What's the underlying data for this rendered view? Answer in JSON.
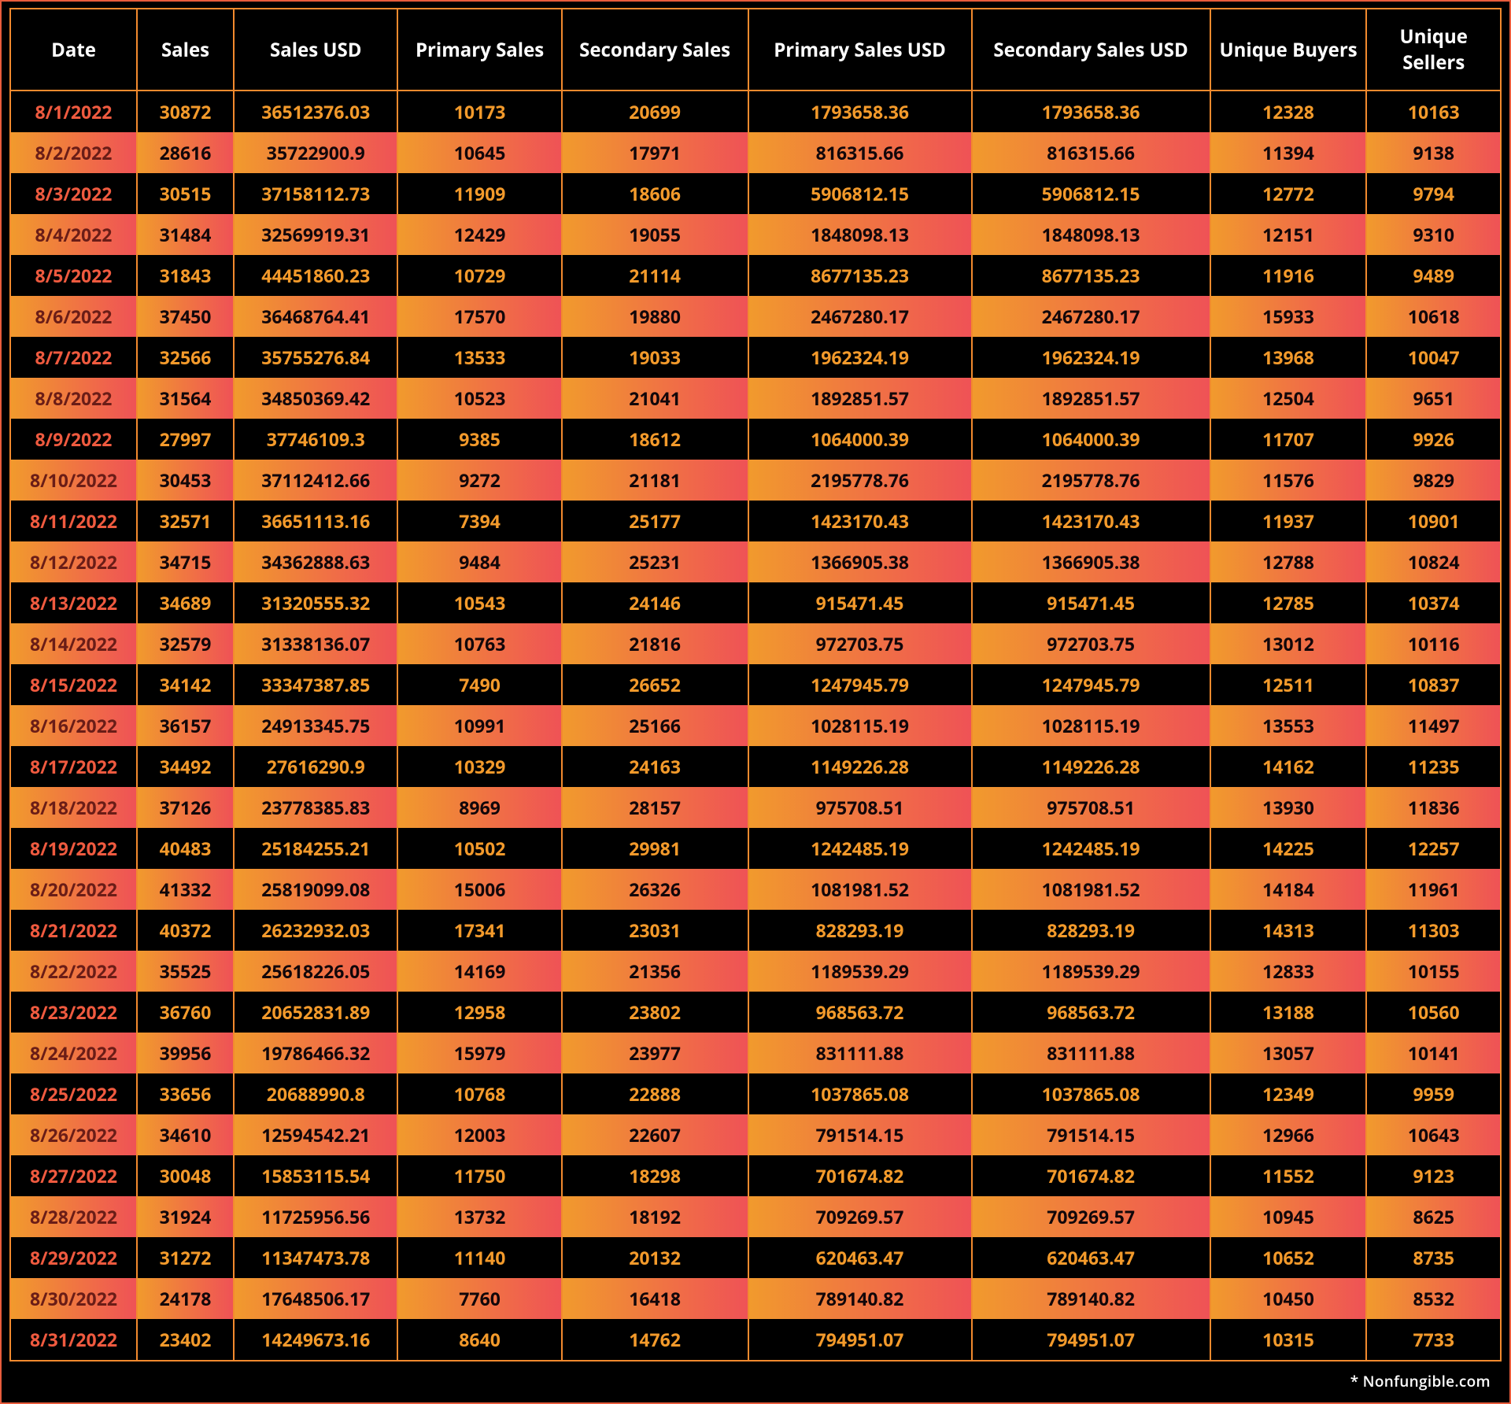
{
  "table": {
    "type": "table",
    "background_color": "#000000",
    "border_color": "#f28a2e",
    "header_bg": "#000000",
    "header_text_color": "#ffffff",
    "header_fontsize": 24,
    "header_fontweight": 700,
    "cell_fontsize": 23,
    "cell_fontweight": 700,
    "odd_row": {
      "bg": "#000000",
      "text_color": "#f39a2b",
      "date_color": "#ef5a3f"
    },
    "even_row": {
      "gradient_start": "#f19a2d",
      "gradient_end": "#ef5256",
      "text_color": "#12070a",
      "date_color": "#6a1d17"
    },
    "column_widths_pct": [
      8.5,
      6.5,
      11,
      11,
      12.5,
      15,
      16,
      10.5,
      11
    ],
    "columns": [
      "Date",
      "Sales",
      "Sales USD",
      "Primary Sales",
      "Secondary Sales",
      "Primary Sales USD",
      "Secondary Sales USD",
      "Unique Buyers",
      "Unique Sellers"
    ],
    "rows": [
      [
        "8/1/2022",
        "30872",
        "36512376.03",
        "10173",
        "20699",
        "1793658.36",
        "1793658.36",
        "12328",
        "10163"
      ],
      [
        "8/2/2022",
        "28616",
        "35722900.9",
        "10645",
        "17971",
        "816315.66",
        "816315.66",
        "11394",
        "9138"
      ],
      [
        "8/3/2022",
        "30515",
        "37158112.73",
        "11909",
        "18606",
        "5906812.15",
        "5906812.15",
        "12772",
        "9794"
      ],
      [
        "8/4/2022",
        "31484",
        "32569919.31",
        "12429",
        "19055",
        "1848098.13",
        "1848098.13",
        "12151",
        "9310"
      ],
      [
        "8/5/2022",
        "31843",
        "44451860.23",
        "10729",
        "21114",
        "8677135.23",
        "8677135.23",
        "11916",
        "9489"
      ],
      [
        "8/6/2022",
        "37450",
        "36468764.41",
        "17570",
        "19880",
        "2467280.17",
        "2467280.17",
        "15933",
        "10618"
      ],
      [
        "8/7/2022",
        "32566",
        "35755276.84",
        "13533",
        "19033",
        "1962324.19",
        "1962324.19",
        "13968",
        "10047"
      ],
      [
        "8/8/2022",
        "31564",
        "34850369.42",
        "10523",
        "21041",
        "1892851.57",
        "1892851.57",
        "12504",
        "9651"
      ],
      [
        "8/9/2022",
        "27997",
        "37746109.3",
        "9385",
        "18612",
        "1064000.39",
        "1064000.39",
        "11707",
        "9926"
      ],
      [
        "8/10/2022",
        "30453",
        "37112412.66",
        "9272",
        "21181",
        "2195778.76",
        "2195778.76",
        "11576",
        "9829"
      ],
      [
        "8/11/2022",
        "32571",
        "36651113.16",
        "7394",
        "25177",
        "1423170.43",
        "1423170.43",
        "11937",
        "10901"
      ],
      [
        "8/12/2022",
        "34715",
        "34362888.63",
        "9484",
        "25231",
        "1366905.38",
        "1366905.38",
        "12788",
        "10824"
      ],
      [
        "8/13/2022",
        "34689",
        "31320555.32",
        "10543",
        "24146",
        "915471.45",
        "915471.45",
        "12785",
        "10374"
      ],
      [
        "8/14/2022",
        "32579",
        "31338136.07",
        "10763",
        "21816",
        "972703.75",
        "972703.75",
        "13012",
        "10116"
      ],
      [
        "8/15/2022",
        "34142",
        "33347387.85",
        "7490",
        "26652",
        "1247945.79",
        "1247945.79",
        "12511",
        "10837"
      ],
      [
        "8/16/2022",
        "36157",
        "24913345.75",
        "10991",
        "25166",
        "1028115.19",
        "1028115.19",
        "13553",
        "11497"
      ],
      [
        "8/17/2022",
        "34492",
        "27616290.9",
        "10329",
        "24163",
        "1149226.28",
        "1149226.28",
        "14162",
        "11235"
      ],
      [
        "8/18/2022",
        "37126",
        "23778385.83",
        "8969",
        "28157",
        "975708.51",
        "975708.51",
        "13930",
        "11836"
      ],
      [
        "8/19/2022",
        "40483",
        "25184255.21",
        "10502",
        "29981",
        "1242485.19",
        "1242485.19",
        "14225",
        "12257"
      ],
      [
        "8/20/2022",
        "41332",
        "25819099.08",
        "15006",
        "26326",
        "1081981.52",
        "1081981.52",
        "14184",
        "11961"
      ],
      [
        "8/21/2022",
        "40372",
        "26232932.03",
        "17341",
        "23031",
        "828293.19",
        "828293.19",
        "14313",
        "11303"
      ],
      [
        "8/22/2022",
        "35525",
        "25618226.05",
        "14169",
        "21356",
        "1189539.29",
        "1189539.29",
        "12833",
        "10155"
      ],
      [
        "8/23/2022",
        "36760",
        "20652831.89",
        "12958",
        "23802",
        "968563.72",
        "968563.72",
        "13188",
        "10560"
      ],
      [
        "8/24/2022",
        "39956",
        "19786466.32",
        "15979",
        "23977",
        "831111.88",
        "831111.88",
        "13057",
        "10141"
      ],
      [
        "8/25/2022",
        "33656",
        "20688990.8",
        "10768",
        "22888",
        "1037865.08",
        "1037865.08",
        "12349",
        "9959"
      ],
      [
        "8/26/2022",
        "34610",
        "12594542.21",
        "12003",
        "22607",
        "791514.15",
        "791514.15",
        "12966",
        "10643"
      ],
      [
        "8/27/2022",
        "30048",
        "15853115.54",
        "11750",
        "18298",
        "701674.82",
        "701674.82",
        "11552",
        "9123"
      ],
      [
        "8/28/2022",
        "31924",
        "11725956.56",
        "13732",
        "18192",
        "709269.57",
        "709269.57",
        "10945",
        "8625"
      ],
      [
        "8/29/2022",
        "31272",
        "11347473.78",
        "11140",
        "20132",
        "620463.47",
        "620463.47",
        "10652",
        "8735"
      ],
      [
        "8/30/2022",
        "24178",
        "17648506.17",
        "7760",
        "16418",
        "789140.82",
        "789140.82",
        "10450",
        "8532"
      ],
      [
        "8/31/2022",
        "23402",
        "14249673.16",
        "8640",
        "14762",
        "794951.07",
        "794951.07",
        "10315",
        "7733"
      ]
    ]
  },
  "footer": {
    "text": "* Nonfungible.com"
  }
}
